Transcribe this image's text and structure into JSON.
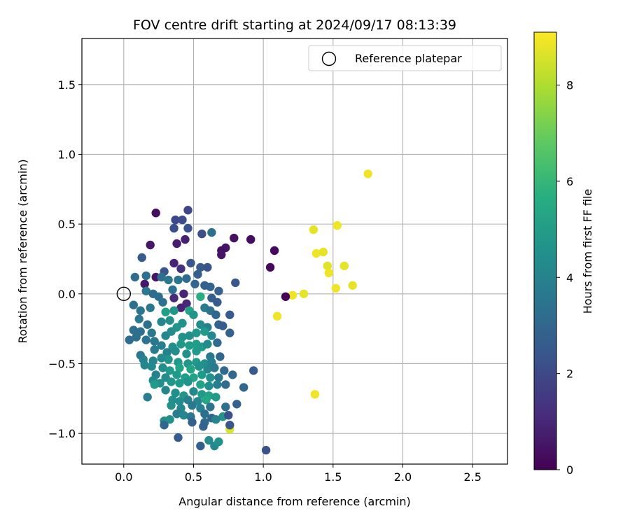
{
  "chart_data": {
    "type": "scatter",
    "title": "FOV centre drift starting at 2024/09/17 08:13:39",
    "xlabel": "Angular distance from reference (arcmin)",
    "ylabel": "Rotation from reference (arcmin)",
    "xlim": [
      -0.3,
      2.75
    ],
    "ylim": [
      -1.22,
      1.83
    ],
    "x_ticks": [
      0.0,
      0.5,
      1.0,
      1.5,
      2.0,
      2.5
    ],
    "x_tick_labels": [
      "0.0",
      "0.5",
      "1.0",
      "1.5",
      "2.0",
      "2.5"
    ],
    "y_ticks": [
      -1.0,
      -0.5,
      0.0,
      0.5,
      1.0,
      1.5
    ],
    "y_tick_labels": [
      "−1.0",
      "−0.5",
      "0.0",
      "0.5",
      "1.0",
      "1.5"
    ],
    "grid": true,
    "legend": {
      "position": "top-right",
      "entries": [
        "Reference platepar"
      ]
    },
    "colorbar": {
      "label": "Hours from first FF file",
      "colormap": "viridis",
      "range": [
        0,
        9.1
      ],
      "ticks": [
        0,
        2,
        4,
        6,
        8
      ],
      "tick_labels": [
        "0",
        "2",
        "4",
        "6",
        "8"
      ]
    },
    "reference_point": {
      "x": 0.0,
      "y": 0.0,
      "name": "Reference platepar"
    },
    "points": [
      [
        1.75,
        0.86,
        8.9
      ],
      [
        1.36,
        0.46,
        8.8
      ],
      [
        1.53,
        0.49,
        8.9
      ],
      [
        1.38,
        0.29,
        8.9
      ],
      [
        1.43,
        0.3,
        8.8
      ],
      [
        1.46,
        0.2,
        8.7
      ],
      [
        1.58,
        0.2,
        8.8
      ],
      [
        1.47,
        0.15,
        8.9
      ],
      [
        1.64,
        0.06,
        8.8
      ],
      [
        1.52,
        0.04,
        8.9
      ],
      [
        1.21,
        -0.01,
        8.9
      ],
      [
        1.29,
        0.0,
        8.8
      ],
      [
        1.1,
        -0.16,
        8.9
      ],
      [
        1.37,
        -0.72,
        8.9
      ],
      [
        0.76,
        -0.97,
        8.6
      ],
      [
        0.23,
        0.58,
        0.3
      ],
      [
        0.79,
        0.4,
        0.4
      ],
      [
        0.91,
        0.39,
        0.3
      ],
      [
        0.73,
        0.33,
        0.5
      ],
      [
        0.7,
        0.31,
        0.4
      ],
      [
        0.7,
        0.28,
        0.5
      ],
      [
        1.08,
        0.31,
        0.2
      ],
      [
        1.05,
        0.19,
        0.2
      ],
      [
        1.16,
        -0.02,
        0.1
      ],
      [
        0.19,
        0.35,
        0.6
      ],
      [
        0.38,
        0.36,
        0.7
      ],
      [
        0.44,
        0.39,
        0.8
      ],
      [
        0.23,
        0.12,
        0.5
      ],
      [
        0.36,
        0.22,
        0.9
      ],
      [
        0.15,
        0.07,
        0.6
      ],
      [
        0.43,
        0.0,
        0.9
      ],
      [
        0.45,
        -0.07,
        1.0
      ],
      [
        0.36,
        -0.03,
        1.1
      ],
      [
        0.41,
        -0.1,
        0.9
      ],
      [
        0.41,
        0.18,
        1.3
      ],
      [
        0.46,
        0.6,
        1.9
      ],
      [
        0.37,
        0.53,
        2.0
      ],
      [
        0.42,
        0.53,
        2.1
      ],
      [
        0.36,
        0.47,
        2.2
      ],
      [
        0.46,
        0.47,
        2.3
      ],
      [
        0.56,
        0.43,
        2.2
      ],
      [
        0.63,
        0.44,
        3.3
      ],
      [
        0.13,
        0.26,
        2.6
      ],
      [
        0.29,
        0.16,
        2.4
      ],
      [
        0.48,
        0.22,
        2.5
      ],
      [
        0.55,
        0.19,
        2.6
      ],
      [
        0.6,
        0.19,
        2.4
      ],
      [
        0.53,
        0.14,
        2.7
      ],
      [
        0.58,
        0.06,
        2.8
      ],
      [
        0.8,
        0.08,
        2.5
      ],
      [
        0.08,
        0.12,
        3.2
      ],
      [
        0.16,
        0.13,
        3.4
      ],
      [
        0.27,
        0.12,
        3.3
      ],
      [
        0.32,
        0.1,
        3.6
      ],
      [
        0.39,
        0.1,
        3.5
      ],
      [
        0.45,
        0.11,
        3.1
      ],
      [
        0.51,
        0.07,
        3.0
      ],
      [
        0.62,
        0.05,
        2.9
      ],
      [
        0.68,
        0.02,
        2.8
      ],
      [
        0.16,
        0.02,
        3.7
      ],
      [
        0.21,
        0.0,
        3.2
      ],
      [
        0.25,
        -0.02,
        3.3
      ],
      [
        0.35,
        0.03,
        3.4
      ],
      [
        0.55,
        -0.02,
        5.6
      ],
      [
        0.63,
        -0.03,
        2.7
      ],
      [
        0.67,
        -0.06,
        2.6
      ],
      [
        0.07,
        -0.08,
        3.3
      ],
      [
        0.12,
        -0.12,
        3.5
      ],
      [
        0.19,
        -0.1,
        3.6
      ],
      [
        0.28,
        -0.06,
        3.4
      ],
      [
        0.3,
        -0.13,
        5.1
      ],
      [
        0.36,
        -0.12,
        4.8
      ],
      [
        0.47,
        -0.12,
        5.3
      ],
      [
        0.5,
        -0.15,
        4.7
      ],
      [
        0.58,
        -0.1,
        3.8
      ],
      [
        0.62,
        -0.12,
        3.5
      ],
      [
        0.66,
        -0.15,
        3.0
      ],
      [
        0.76,
        -0.15,
        2.6
      ],
      [
        0.11,
        -0.18,
        3.7
      ],
      [
        0.17,
        -0.22,
        3.4
      ],
      [
        0.27,
        -0.2,
        4.2
      ],
      [
        0.33,
        -0.19,
        4.5
      ],
      [
        0.38,
        -0.24,
        4.7
      ],
      [
        0.42,
        -0.21,
        4.6
      ],
      [
        0.55,
        -0.22,
        4.4
      ],
      [
        0.6,
        -0.24,
        3.9
      ],
      [
        0.68,
        -0.22,
        2.9
      ],
      [
        0.71,
        -0.23,
        2.7
      ],
      [
        0.07,
        -0.26,
        3.3
      ],
      [
        0.12,
        -0.27,
        3.4
      ],
      [
        0.2,
        -0.28,
        3.6
      ],
      [
        0.3,
        -0.3,
        4.2
      ],
      [
        0.34,
        -0.27,
        4.4
      ],
      [
        0.42,
        -0.31,
        4.6
      ],
      [
        0.47,
        -0.3,
        4.5
      ],
      [
        0.52,
        -0.28,
        4.8
      ],
      [
        0.58,
        -0.27,
        4.9
      ],
      [
        0.63,
        -0.3,
        4.3
      ],
      [
        0.76,
        -0.28,
        2.8
      ],
      [
        0.04,
        -0.33,
        3.2
      ],
      [
        0.09,
        -0.31,
        3.3
      ],
      [
        0.16,
        -0.33,
        3.5
      ],
      [
        0.22,
        -0.34,
        3.6
      ],
      [
        0.27,
        -0.37,
        3.9
      ],
      [
        0.35,
        -0.38,
        4.6
      ],
      [
        0.41,
        -0.36,
        4.8
      ],
      [
        0.47,
        -0.37,
        5.0
      ],
      [
        0.52,
        -0.36,
        5.1
      ],
      [
        0.56,
        -0.38,
        5.0
      ],
      [
        0.6,
        -0.36,
        4.4
      ],
      [
        0.67,
        -0.35,
        3.1
      ],
      [
        0.22,
        -0.4,
        3.8
      ],
      [
        0.31,
        -0.42,
        4.0
      ],
      [
        0.37,
        -0.41,
        4.4
      ],
      [
        0.45,
        -0.43,
        4.6
      ],
      [
        0.52,
        -0.41,
        4.9
      ],
      [
        0.62,
        -0.45,
        3.6
      ],
      [
        0.69,
        -0.45,
        3.0
      ],
      [
        0.12,
        -0.44,
        3.6
      ],
      [
        0.14,
        -0.47,
        4.0
      ],
      [
        0.21,
        -0.48,
        4.1
      ],
      [
        0.27,
        -0.46,
        4.4
      ],
      [
        0.32,
        -0.47,
        4.7
      ],
      [
        0.39,
        -0.49,
        4.9
      ],
      [
        0.46,
        -0.5,
        4.8
      ],
      [
        0.52,
        -0.49,
        5.0
      ],
      [
        0.58,
        -0.5,
        4.5
      ],
      [
        0.63,
        -0.49,
        4.0
      ],
      [
        0.15,
        -0.51,
        4.2
      ],
      [
        0.2,
        -0.52,
        4.3
      ],
      [
        0.28,
        -0.53,
        4.5
      ],
      [
        0.33,
        -0.55,
        4.9
      ],
      [
        0.4,
        -0.53,
        5.2
      ],
      [
        0.48,
        -0.54,
        5.3
      ],
      [
        0.54,
        -0.52,
        4.6
      ],
      [
        0.6,
        -0.54,
        4.2
      ],
      [
        0.65,
        -0.53,
        3.7
      ],
      [
        0.72,
        -0.55,
        3.1
      ],
      [
        0.93,
        -0.55,
        2.6
      ],
      [
        0.23,
        -0.58,
        4.0
      ],
      [
        0.3,
        -0.6,
        4.4
      ],
      [
        0.38,
        -0.58,
        4.9
      ],
      [
        0.44,
        -0.6,
        5.1
      ],
      [
        0.5,
        -0.6,
        5.2
      ],
      [
        0.56,
        -0.58,
        5.0
      ],
      [
        0.62,
        -0.6,
        4.6
      ],
      [
        0.68,
        -0.6,
        3.6
      ],
      [
        0.78,
        -0.58,
        3.0
      ],
      [
        0.21,
        -0.62,
        4.3
      ],
      [
        0.26,
        -0.64,
        4.5
      ],
      [
        0.34,
        -0.63,
        4.8
      ],
      [
        0.4,
        -0.64,
        5.0
      ],
      [
        0.46,
        -0.63,
        4.7
      ],
      [
        0.55,
        -0.65,
        5.2
      ],
      [
        0.61,
        -0.66,
        4.5
      ],
      [
        0.67,
        -0.65,
        3.9
      ],
      [
        0.73,
        -0.65,
        3.2
      ],
      [
        0.86,
        -0.67,
        3.0
      ],
      [
        0.22,
        -0.65,
        4.9
      ],
      [
        0.17,
        -0.74,
        3.9
      ],
      [
        0.3,
        -0.69,
        4.2
      ],
      [
        0.37,
        -0.71,
        4.5
      ],
      [
        0.43,
        -0.73,
        4.8
      ],
      [
        0.5,
        -0.7,
        4.3
      ],
      [
        0.56,
        -0.72,
        4.9
      ],
      [
        0.61,
        -0.73,
        5.2
      ],
      [
        0.66,
        -0.74,
        4.9
      ],
      [
        0.35,
        -0.76,
        4.5
      ],
      [
        0.4,
        -0.77,
        4.4
      ],
      [
        0.46,
        -0.76,
        4.0
      ],
      [
        0.53,
        -0.77,
        4.2
      ],
      [
        0.59,
        -0.76,
        5.4
      ],
      [
        0.34,
        -0.8,
        4.6
      ],
      [
        0.41,
        -0.82,
        4.2
      ],
      [
        0.49,
        -0.8,
        3.7
      ],
      [
        0.55,
        -0.82,
        4.0
      ],
      [
        0.62,
        -0.81,
        3.5
      ],
      [
        0.73,
        -0.81,
        3.3
      ],
      [
        0.81,
        -0.79,
        2.8
      ],
      [
        0.38,
        -0.86,
        3.8
      ],
      [
        0.43,
        -0.87,
        4.2
      ],
      [
        0.48,
        -0.88,
        3.6
      ],
      [
        0.58,
        -0.86,
        3.3
      ],
      [
        0.63,
        -0.89,
        3.0
      ],
      [
        0.71,
        -0.88,
        4.7
      ],
      [
        0.75,
        -0.87,
        2.3
      ],
      [
        0.29,
        -0.91,
        4.4
      ],
      [
        0.33,
        -0.9,
        4.6
      ],
      [
        0.49,
        -0.92,
        2.8
      ],
      [
        0.58,
        -0.92,
        3.1
      ],
      [
        0.66,
        -0.9,
        4.1
      ],
      [
        0.29,
        -0.94,
        3.0
      ],
      [
        0.57,
        -0.95,
        2.9
      ],
      [
        0.76,
        -0.94,
        2.4
      ],
      [
        0.39,
        -1.03,
        2.6
      ],
      [
        0.55,
        -1.09,
        2.7
      ],
      [
        0.61,
        -1.05,
        4.4
      ],
      [
        0.65,
        -1.09,
        4.3
      ],
      [
        0.68,
        -1.06,
        4.6
      ],
      [
        1.02,
        -1.12,
        2.3
      ]
    ]
  }
}
